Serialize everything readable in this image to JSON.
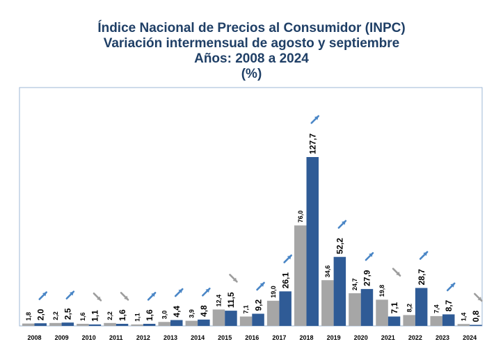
{
  "colors": {
    "agosto": "#a6a6a6",
    "septiembre": "#2f5b96",
    "arrow_up": "#4a86c6",
    "arrow_down": "#9d9d9d",
    "title": "#1f3f66",
    "frame": "#9cb7d6"
  },
  "chart_data": {
    "type": "bar",
    "title": "Índice Nacional de Precios al Consumidor (INPC)",
    "subtitle": "Variación intermensual de agosto y septiembre",
    "subtitle2": "Años: 2008 a 2024",
    "unit": "(%)",
    "categories": [
      "2008",
      "2009",
      "2010",
      "2011",
      "2012",
      "2013",
      "2014",
      "2015",
      "2016",
      "2017",
      "2018",
      "2019",
      "2020",
      "2021",
      "2022",
      "2023",
      "2024"
    ],
    "series": [
      {
        "values": [
          1.8,
          2.2,
          1.6,
          2.2,
          1.1,
          3.0,
          3.9,
          12.4,
          7.1,
          19.0,
          76.0,
          34.6,
          24.7,
          19.8,
          8.2,
          7.4,
          1.4
        ],
        "labels": [
          "1,8",
          "2,2",
          "1,6",
          "2,2",
          "1,1",
          "3,0",
          "3,9",
          "12,4",
          "7,1",
          "19,0",
          "76,0",
          "34,6",
          "24,7",
          "19,8",
          "8,2",
          "7,4",
          "1,4"
        ]
      },
      {
        "values": [
          2.0,
          2.5,
          1.1,
          1.6,
          1.6,
          4.4,
          4.8,
          11.5,
          9.2,
          26.1,
          127.7,
          52.2,
          27.9,
          7.1,
          28.7,
          8.7,
          0.8
        ],
        "labels": [
          "2,0",
          "2,5",
          "1,1",
          "1,6",
          "1,6",
          "4,4",
          "4,8",
          "11,5",
          "9,2",
          "26,1",
          "127,7",
          "52,2",
          "27,9",
          "7,1",
          "28,7",
          "8,7",
          "0,8"
        ]
      }
    ],
    "trend": [
      "up",
      "up",
      "down",
      "down",
      "up",
      "up",
      "up",
      "down",
      "up",
      "up",
      "up",
      "up",
      "up",
      "down",
      "up",
      "up",
      "down"
    ],
    "ylim": [
      0,
      140
    ],
    "grid": false,
    "legend": "none"
  }
}
